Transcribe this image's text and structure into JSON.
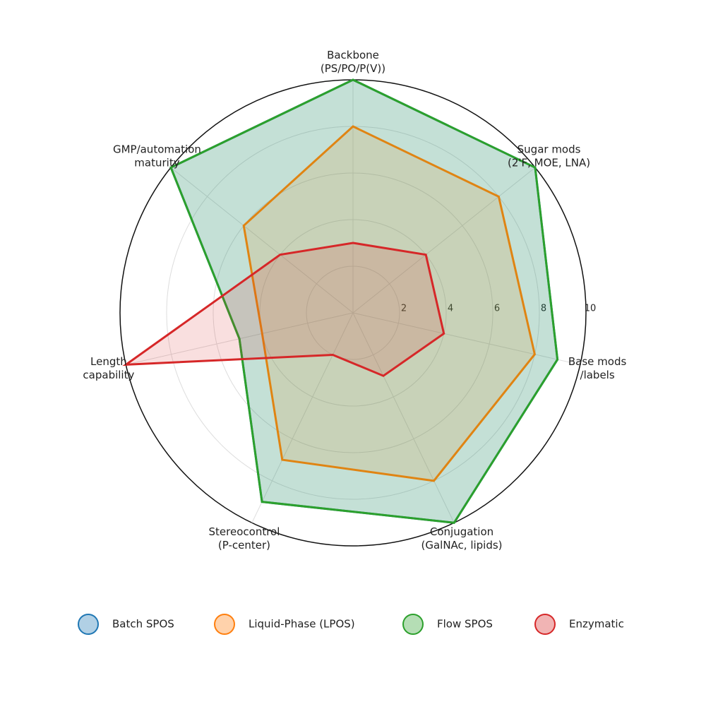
{
  "chart_data": {
    "type": "radar",
    "categories": [
      [
        "Backbone",
        "(PS/PO/P(V))"
      ],
      [
        "Sugar mods",
        "(2'F, MOE, LNA)"
      ],
      [
        "Base mods",
        "/labels"
      ],
      [
        "Conjugation",
        "(GalNAc, lipids)"
      ],
      [
        "Stereocontrol",
        "(P-center)"
      ],
      [
        "Length",
        "capability"
      ],
      [
        "GMP/automation",
        "maturity"
      ]
    ],
    "series": [
      {
        "name": "Batch SPOS",
        "color": "#1f77b4",
        "values": [
          10,
          10,
          9,
          10,
          9,
          5,
          10
        ]
      },
      {
        "name": "Liquid-Phase (LPOS)",
        "color": "#ff7f0e",
        "values": [
          8,
          8,
          8,
          8,
          7,
          4,
          6
        ]
      },
      {
        "name": "Flow SPOS",
        "color": "#2ca02c",
        "values": [
          10,
          10,
          9,
          10,
          9,
          5,
          10
        ]
      },
      {
        "name": "Enzymatic",
        "color": "#d62728",
        "values": [
          3,
          4,
          4,
          3,
          2,
          10,
          4
        ]
      }
    ],
    "ylim": [
      0,
      10
    ],
    "yticks": [
      2,
      4,
      6,
      8,
      10
    ],
    "grid": true,
    "legend": "bottom"
  }
}
